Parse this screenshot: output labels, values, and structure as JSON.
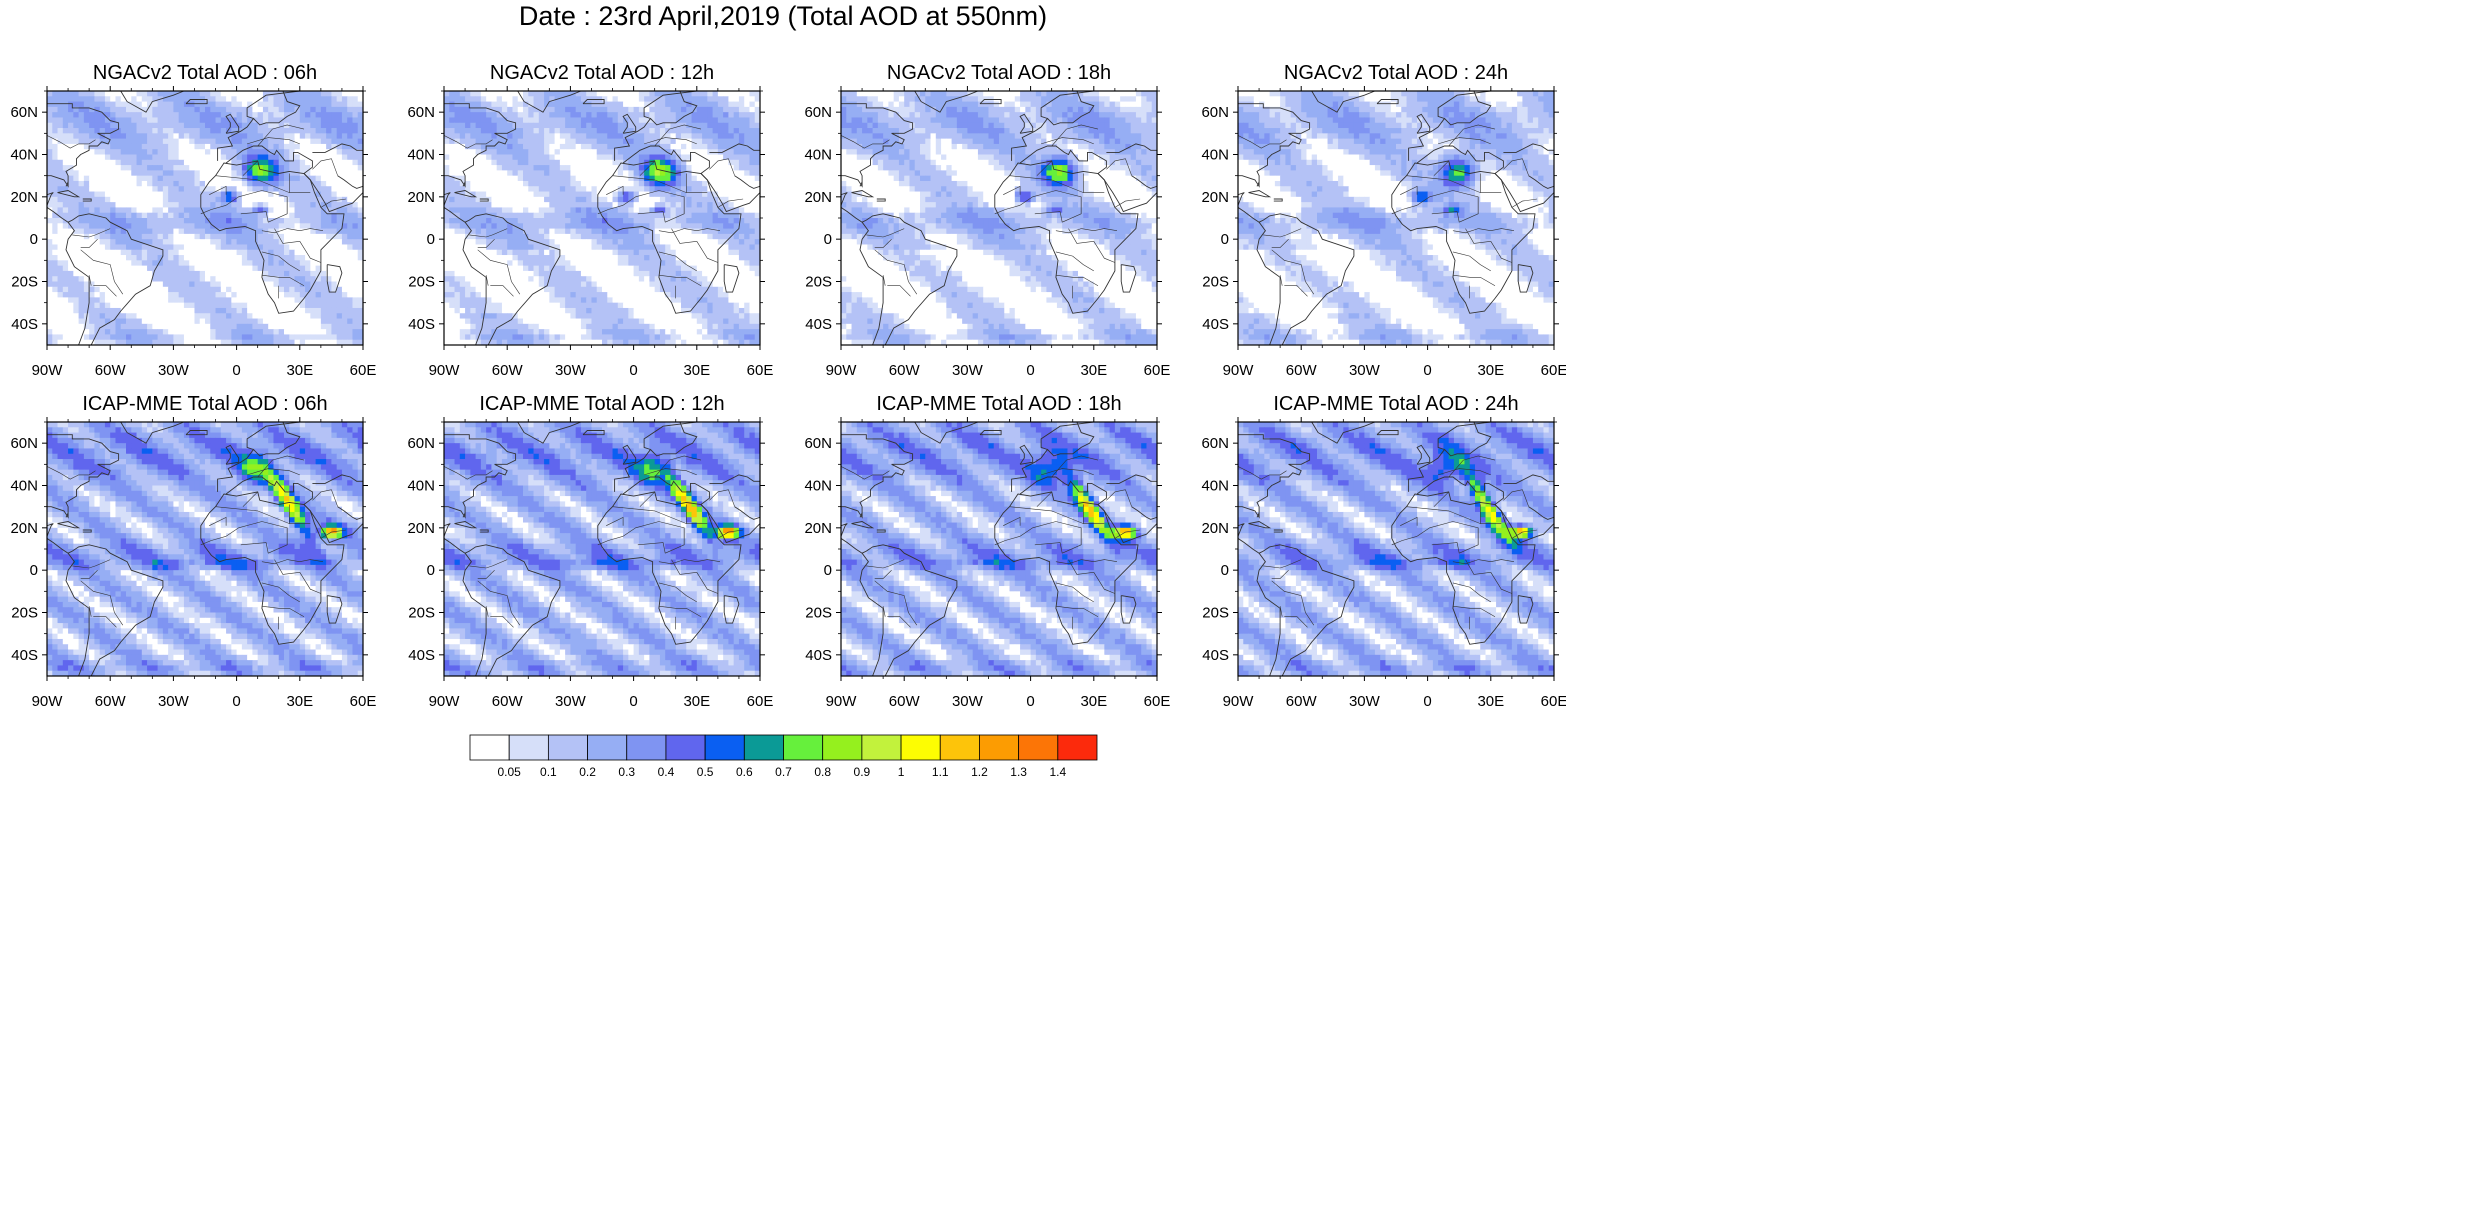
{
  "title": "Date : 23rd April,2019 (Total AOD at 550nm)",
  "lon_ticks": [
    "90W",
    "60W",
    "30W",
    "0",
    "30E",
    "60E"
  ],
  "lat_ticks": [
    "60N",
    "40N",
    "20N",
    "0",
    "20S",
    "40S"
  ],
  "panels": [
    {
      "title": "NGACv2 Total AOD : 06h",
      "model": "NGACv2",
      "hour": "06h"
    },
    {
      "title": "NGACv2 Total AOD : 12h",
      "model": "NGACv2",
      "hour": "12h"
    },
    {
      "title": "NGACv2 Total AOD : 18h",
      "model": "NGACv2",
      "hour": "18h"
    },
    {
      "title": "NGACv2 Total AOD : 24h",
      "model": "NGACv2",
      "hour": "24h"
    },
    {
      "title": "ICAP-MME Total AOD : 06h",
      "model": "ICAP-MME",
      "hour": "06h"
    },
    {
      "title": "ICAP-MME Total AOD : 12h",
      "model": "ICAP-MME",
      "hour": "12h"
    },
    {
      "title": "ICAP-MME Total AOD : 18h",
      "model": "ICAP-MME",
      "hour": "18h"
    },
    {
      "title": "ICAP-MME Total AOD : 24h",
      "model": "ICAP-MME",
      "hour": "24h"
    }
  ],
  "colorbar": {
    "labels": [
      "0.05",
      "0.1",
      "0.2",
      "0.3",
      "0.4",
      "0.5",
      "0.6",
      "0.7",
      "0.8",
      "0.9",
      "1",
      "1.1",
      "1.2",
      "1.3",
      "1.4"
    ],
    "colors": [
      "#ffffff",
      "#d6dff9",
      "#b4c2f6",
      "#96aef4",
      "#7f94f2",
      "#6066ee",
      "#0a5ff2",
      "#0b9a96",
      "#66f03c",
      "#95f01e",
      "#c2f23c",
      "#fdfd02",
      "#fdc40a",
      "#fc9c02",
      "#fc7506",
      "#fc2a0c"
    ]
  },
  "map": {
    "ocean_base": "#b9c9f5",
    "land_line": "#333333"
  }
}
